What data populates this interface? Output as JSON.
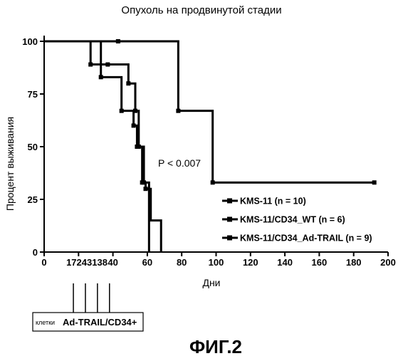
{
  "chart_data": {
    "type": "line",
    "title": "Опухоль на  продвинутой стадии",
    "xlabel": "Дни",
    "ylabel": "Процент выживания",
    "xlim": [
      0,
      200
    ],
    "ylim": [
      0,
      100
    ],
    "x_ticks": [
      "0",
      "20",
      "40",
      "60",
      "80",
      "100",
      "120",
      "140",
      "160",
      "180",
      "200"
    ],
    "x_ticks_values": [
      0,
      20,
      40,
      60,
      80,
      100,
      120,
      140,
      160,
      180,
      200
    ],
    "extra_x_label": "17243138",
    "y_ticks": [
      "0",
      "25",
      "50",
      "75",
      "100"
    ],
    "y_ticks_values": [
      0,
      25,
      50,
      75,
      100
    ],
    "annotation": "P < 0.007",
    "legend_position": "bottom-right",
    "series": [
      {
        "name": "KMS-11 (n = 10)",
        "x": [
          0,
          43,
          78,
          98,
          192
        ],
        "y": [
          100,
          100,
          67,
          33,
          33
        ]
      },
      {
        "name": "KMS-11/CD34_WT (n = 6)",
        "x": [
          0,
          33,
          45,
          52,
          54,
          57,
          59,
          62,
          68
        ],
        "y": [
          100,
          83,
          67,
          60,
          50,
          33,
          30,
          15,
          0
        ]
      },
      {
        "name": "KMS-11/CD34_Ad-TRAIL (n = 9)",
        "x": [
          0,
          27,
          37,
          49,
          53,
          55,
          58,
          61
        ],
        "y": [
          100,
          89,
          89,
          80,
          67,
          50,
          33,
          0
        ]
      }
    ],
    "injection_box_small": "клетки",
    "injection_box_label": "Ad-TRAIL/CD34+",
    "injection_days": [
      17,
      24,
      31,
      38
    ]
  },
  "figure_label": "ФИГ.2"
}
